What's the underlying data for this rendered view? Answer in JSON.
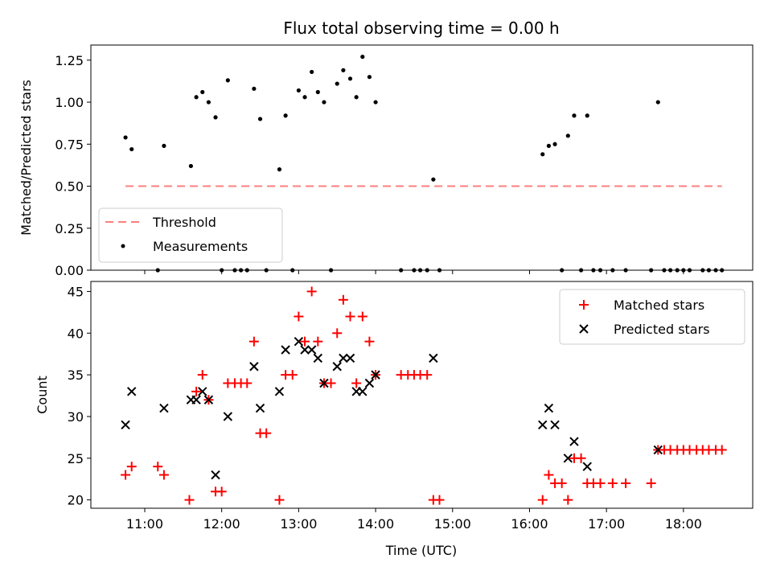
{
  "chart_data": [
    {
      "type": "scatter",
      "title": "Flux total observing time = 0.00 h",
      "xlabel": "",
      "ylabel": "Matched/Predicted stars",
      "xlim_hours": [
        10.3,
        18.9
      ],
      "ylim": [
        0,
        1.34
      ],
      "x_ticks": [
        11,
        12,
        13,
        14,
        15,
        16,
        17,
        18
      ],
      "x_tick_labels_visible": false,
      "y_ticks": [
        0.0,
        0.25,
        0.5,
        0.75,
        1.0,
        1.25
      ],
      "y_tick_labels": [
        "0.00",
        "0.25",
        "0.50",
        "0.75",
        "1.00",
        "1.25"
      ],
      "legend": {
        "placement": "lower-left",
        "entries": [
          "Threshold",
          "Measurements"
        ]
      },
      "threshold": {
        "name": "Threshold",
        "y": 0.5,
        "x_range": [
          10.75,
          18.5
        ],
        "color": "#ff7f7f",
        "style": "dashed"
      },
      "series": [
        {
          "name": "Measurements",
          "color": "#000000",
          "marker": "dot",
          "points": [
            [
              10.75,
              0.79
            ],
            [
              10.83,
              0.72
            ],
            [
              11.25,
              0.74
            ],
            [
              11.6,
              0.62
            ],
            [
              11.67,
              1.03
            ],
            [
              11.75,
              1.06
            ],
            [
              11.83,
              1.0
            ],
            [
              11.92,
              0.91
            ],
            [
              12.08,
              1.13
            ],
            [
              12.42,
              1.08
            ],
            [
              12.5,
              0.9
            ],
            [
              12.75,
              0.6
            ],
            [
              12.83,
              0.92
            ],
            [
              13.0,
              1.07
            ],
            [
              13.08,
              1.03
            ],
            [
              13.17,
              1.18
            ],
            [
              13.25,
              1.06
            ],
            [
              13.33,
              1.0
            ],
            [
              13.5,
              1.11
            ],
            [
              13.58,
              1.19
            ],
            [
              13.67,
              1.14
            ],
            [
              13.75,
              1.03
            ],
            [
              13.83,
              1.27
            ],
            [
              13.92,
              1.15
            ],
            [
              14.0,
              1.0
            ],
            [
              14.75,
              0.54
            ],
            [
              16.17,
              0.69
            ],
            [
              16.25,
              0.74
            ],
            [
              16.33,
              0.75
            ],
            [
              16.5,
              0.8
            ],
            [
              16.58,
              0.92
            ],
            [
              16.75,
              0.92
            ],
            [
              17.67,
              1.0
            ],
            [
              11.17,
              0.0
            ],
            [
              12.0,
              0.0
            ],
            [
              12.17,
              0.0
            ],
            [
              12.25,
              0.0
            ],
            [
              12.33,
              0.0
            ],
            [
              12.58,
              0.0
            ],
            [
              12.92,
              0.0
            ],
            [
              13.42,
              0.0
            ],
            [
              14.33,
              0.0
            ],
            [
              14.5,
              0.0
            ],
            [
              14.58,
              0.0
            ],
            [
              14.67,
              0.0
            ],
            [
              14.83,
              0.0
            ],
            [
              16.42,
              0.0
            ],
            [
              16.67,
              0.0
            ],
            [
              16.83,
              0.0
            ],
            [
              16.92,
              0.0
            ],
            [
              17.08,
              0.0
            ],
            [
              17.25,
              0.0
            ],
            [
              17.58,
              0.0
            ],
            [
              17.75,
              0.0
            ],
            [
              17.83,
              0.0
            ],
            [
              17.92,
              0.0
            ],
            [
              18.0,
              0.0
            ],
            [
              18.08,
              0.0
            ],
            [
              18.25,
              0.0
            ],
            [
              18.33,
              0.0
            ],
            [
              18.42,
              0.0
            ],
            [
              18.5,
              0.0
            ]
          ]
        }
      ]
    },
    {
      "type": "scatter",
      "title": "",
      "xlabel": "Time (UTC)",
      "ylabel": "Count",
      "xlim_hours": [
        10.3,
        18.9
      ],
      "ylim": [
        19.0,
        46.2
      ],
      "x_ticks": [
        11,
        12,
        13,
        14,
        15,
        16,
        17,
        18
      ],
      "x_tick_labels": [
        "11:00",
        "12:00",
        "13:00",
        "14:00",
        "15:00",
        "16:00",
        "17:00",
        "18:00"
      ],
      "y_ticks": [
        20,
        25,
        30,
        35,
        40,
        45
      ],
      "y_tick_labels": [
        "20",
        "25",
        "30",
        "35",
        "40",
        "45"
      ],
      "legend": {
        "placement": "upper-right",
        "entries": [
          "Matched stars",
          "Predicted stars"
        ]
      },
      "series": [
        {
          "name": "Matched stars",
          "color": "#ff0000",
          "marker": "plus",
          "points": [
            [
              10.75,
              23
            ],
            [
              10.83,
              24
            ],
            [
              11.17,
              24
            ],
            [
              11.25,
              23
            ],
            [
              11.58,
              20
            ],
            [
              11.67,
              33
            ],
            [
              11.75,
              35
            ],
            [
              11.83,
              32
            ],
            [
              11.92,
              21
            ],
            [
              12.0,
              21
            ],
            [
              12.08,
              34
            ],
            [
              12.17,
              34
            ],
            [
              12.25,
              34
            ],
            [
              12.33,
              34
            ],
            [
              12.42,
              39
            ],
            [
              12.5,
              28
            ],
            [
              12.58,
              28
            ],
            [
              12.75,
              20
            ],
            [
              12.83,
              35
            ],
            [
              12.92,
              35
            ],
            [
              13.0,
              42
            ],
            [
              13.08,
              39
            ],
            [
              13.17,
              45
            ],
            [
              13.25,
              39
            ],
            [
              13.33,
              34
            ],
            [
              13.42,
              34
            ],
            [
              13.5,
              40
            ],
            [
              13.58,
              44
            ],
            [
              13.67,
              42
            ],
            [
              13.75,
              34
            ],
            [
              13.83,
              42
            ],
            [
              13.92,
              39
            ],
            [
              14.0,
              35
            ],
            [
              14.33,
              35
            ],
            [
              14.42,
              35
            ],
            [
              14.5,
              35
            ],
            [
              14.58,
              35
            ],
            [
              14.67,
              35
            ],
            [
              14.75,
              20
            ],
            [
              14.83,
              20
            ],
            [
              16.17,
              20
            ],
            [
              16.25,
              23
            ],
            [
              16.33,
              22
            ],
            [
              16.42,
              22
            ],
            [
              16.5,
              20
            ],
            [
              16.58,
              25
            ],
            [
              16.67,
              25
            ],
            [
              16.75,
              22
            ],
            [
              16.83,
              22
            ],
            [
              16.92,
              22
            ],
            [
              17.08,
              22
            ],
            [
              17.25,
              22
            ],
            [
              17.58,
              22
            ],
            [
              17.67,
              26
            ],
            [
              17.75,
              26
            ],
            [
              17.83,
              26
            ],
            [
              17.92,
              26
            ],
            [
              18.0,
              26
            ],
            [
              18.08,
              26
            ],
            [
              18.17,
              26
            ],
            [
              18.25,
              26
            ],
            [
              18.33,
              26
            ],
            [
              18.42,
              26
            ],
            [
              18.5,
              26
            ]
          ]
        },
        {
          "name": "Predicted stars",
          "color": "#000000",
          "marker": "x",
          "points": [
            [
              10.75,
              29
            ],
            [
              10.83,
              33
            ],
            [
              11.25,
              31
            ],
            [
              11.6,
              32
            ],
            [
              11.67,
              32
            ],
            [
              11.75,
              33
            ],
            [
              11.83,
              32
            ],
            [
              11.92,
              23
            ],
            [
              12.08,
              30
            ],
            [
              12.42,
              36
            ],
            [
              12.5,
              31
            ],
            [
              12.75,
              33
            ],
            [
              12.83,
              38
            ],
            [
              13.0,
              39
            ],
            [
              13.08,
              38
            ],
            [
              13.17,
              38
            ],
            [
              13.25,
              37
            ],
            [
              13.33,
              34
            ],
            [
              13.5,
              36
            ],
            [
              13.58,
              37
            ],
            [
              13.67,
              37
            ],
            [
              13.75,
              33
            ],
            [
              13.83,
              33
            ],
            [
              13.92,
              34
            ],
            [
              14.0,
              35
            ],
            [
              14.75,
              37
            ],
            [
              16.17,
              29
            ],
            [
              16.25,
              31
            ],
            [
              16.33,
              29
            ],
            [
              16.5,
              25
            ],
            [
              16.58,
              27
            ],
            [
              16.75,
              24
            ],
            [
              17.67,
              26
            ]
          ]
        }
      ]
    }
  ]
}
